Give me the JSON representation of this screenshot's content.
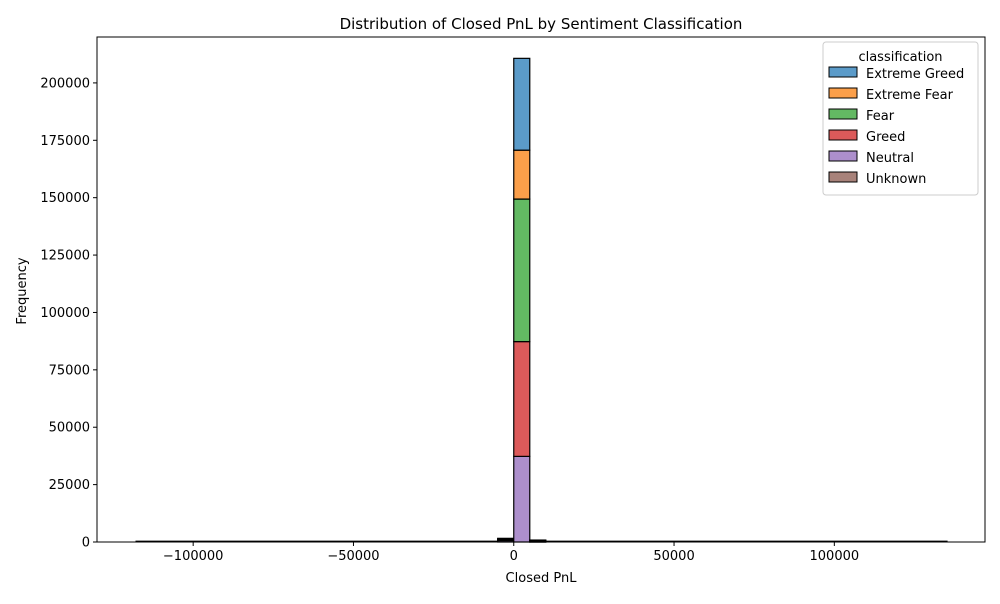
{
  "chart_data": {
    "type": "bar",
    "title": "Distribution of Closed PnL by Sentiment Classification",
    "xlabel": "Closed PnL",
    "ylabel": "Frequency",
    "xlim": [
      -130000,
      147000
    ],
    "ylim": [
      0,
      220000
    ],
    "xticks": [
      -100000,
      -50000,
      0,
      50000,
      100000
    ],
    "xtick_labels": [
      "−100000",
      "−50000",
      "0",
      "50000",
      "100000"
    ],
    "yticks": [
      0,
      25000,
      50000,
      75000,
      100000,
      125000,
      150000,
      175000,
      200000
    ],
    "ytick_labels": [
      "0",
      "25000",
      "50000",
      "75000",
      "100000",
      "125000",
      "150000",
      "175000",
      "200000"
    ],
    "stacked": true,
    "data_range": [
      -117990,
      135329
    ],
    "bins": [
      {
        "x0": -5000,
        "x1": 0,
        "series": [
          {
            "name": "Unknown",
            "value": 0
          },
          {
            "name": "Neutral",
            "value": 600
          },
          {
            "name": "Greed",
            "value": 400
          },
          {
            "name": "Fear",
            "value": 300
          },
          {
            "name": "Extreme Fear",
            "value": 100
          },
          {
            "name": "Extreme Greed",
            "value": 200
          }
        ]
      },
      {
        "x0": 0,
        "x1": 5000,
        "series": [
          {
            "name": "Unknown",
            "value": 0
          },
          {
            "name": "Neutral",
            "value": 37300
          },
          {
            "name": "Greed",
            "value": 50000
          },
          {
            "name": "Fear",
            "value": 62100
          },
          {
            "name": "Extreme Fear",
            "value": 21300
          },
          {
            "name": "Extreme Greed",
            "value": 40000
          }
        ]
      },
      {
        "x0": 5000,
        "x1": 10000,
        "series": [
          {
            "name": "Unknown",
            "value": 0
          },
          {
            "name": "Neutral",
            "value": 150
          },
          {
            "name": "Greed",
            "value": 200
          },
          {
            "name": "Fear",
            "value": 250
          },
          {
            "name": "Extreme Fear",
            "value": 100
          },
          {
            "name": "Extreme Greed",
            "value": 150
          }
        ]
      }
    ],
    "legend": {
      "title": "classification",
      "position": "top-right",
      "entries": [
        {
          "name": "Extreme Greed",
          "color": "#5b9bc9"
        },
        {
          "name": "Extreme Fear",
          "color": "#fb9f4a"
        },
        {
          "name": "Fear",
          "color": "#63b963"
        },
        {
          "name": "Greed",
          "color": "#dc5a5a"
        },
        {
          "name": "Neutral",
          "color": "#ad8fcc"
        },
        {
          "name": "Unknown",
          "color": "#a8827a"
        }
      ]
    },
    "grid": false
  }
}
